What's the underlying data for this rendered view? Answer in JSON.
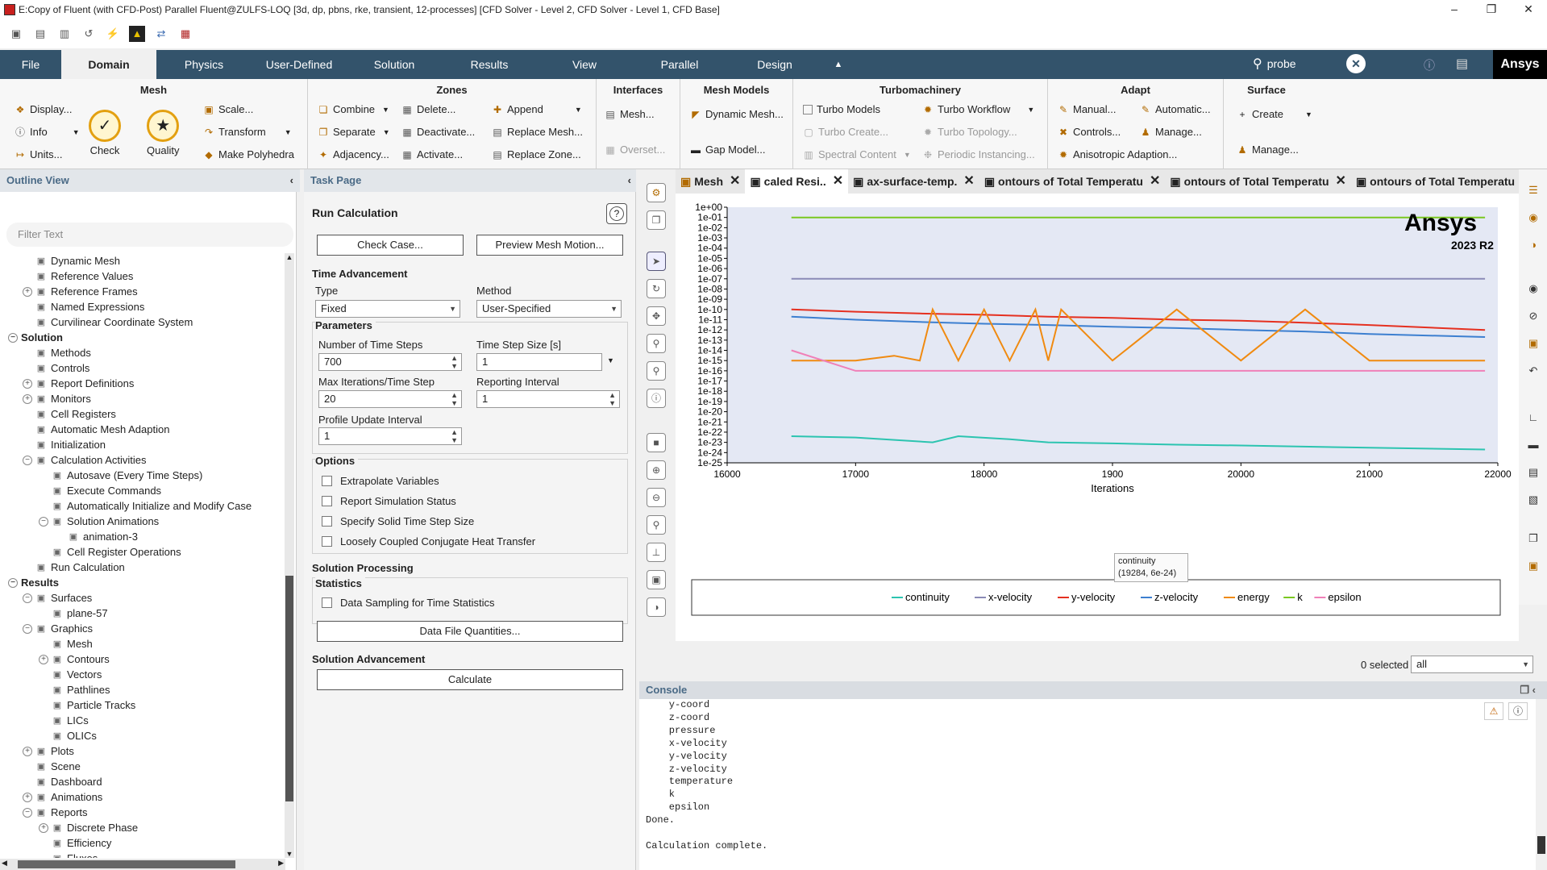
{
  "window": {
    "title": "E:Copy of Fluent (with CFD-Post) Parallel Fluent@ZULFS-LOQ  [3d, dp, pbns, rke, transient, 12-processes] [CFD Solver - Level 2, CFD Solver - Level 1, CFD Base]"
  },
  "tabs": [
    "File",
    "Domain",
    "Physics",
    "User-Defined",
    "Solution",
    "Results",
    "View",
    "Parallel",
    "Design"
  ],
  "search": {
    "value": "probe"
  },
  "brand": "Ansys",
  "ribbon": {
    "mesh": {
      "title": "Mesh",
      "display": "Display...",
      "info": "Info",
      "units": "Units...",
      "check": "Check",
      "quality": "Quality",
      "scale": "Scale...",
      "transform": "Transform",
      "polyhedra": "Make Polyhedra"
    },
    "zones": {
      "title": "Zones",
      "combine": "Combine",
      "separate": "Separate",
      "adjacency": "Adjacency...",
      "delete": "Delete...",
      "deactivate": "Deactivate...",
      "activate": "Activate...",
      "append": "Append",
      "replace_mesh": "Replace Mesh...",
      "replace_zone": "Replace Zone..."
    },
    "interfaces": {
      "title": "Interfaces",
      "mesh": "Mesh...",
      "overset": "Overset..."
    },
    "mesh_models": {
      "title": "Mesh Models",
      "dynamic": "Dynamic Mesh...",
      "gap": "Gap Model..."
    },
    "turbo": {
      "title": "Turbomachinery",
      "models": "Turbo Models",
      "create": "Turbo Create...",
      "spectral": "Spectral Content",
      "workflow": "Turbo Workflow",
      "topology": "Turbo Topology...",
      "periodic": "Periodic Instancing..."
    },
    "adapt": {
      "title": "Adapt",
      "manual": "Manual...",
      "controls": "Controls...",
      "aniso": "Anisotropic Adaption...",
      "automatic": "Automatic...",
      "manage": "Manage..."
    },
    "surface": {
      "title": "Surface",
      "create": "Create",
      "manage": "Manage..."
    }
  },
  "outline": {
    "title": "Outline View",
    "filter_placeholder": "Filter Text",
    "items": [
      {
        "label": "Dynamic Mesh",
        "level": 2,
        "tog": ""
      },
      {
        "label": "Reference Values",
        "level": 2,
        "tog": ""
      },
      {
        "label": "Reference Frames",
        "level": 2,
        "tog": "+"
      },
      {
        "label": "Named Expressions",
        "level": 2,
        "tog": ""
      },
      {
        "label": "Curvilinear Coordinate System",
        "level": 2,
        "tog": ""
      },
      {
        "label": "Solution",
        "level": 0,
        "tog": "-",
        "bold": true
      },
      {
        "label": "Methods",
        "level": 2,
        "tog": ""
      },
      {
        "label": "Controls",
        "level": 2,
        "tog": ""
      },
      {
        "label": "Report Definitions",
        "level": 2,
        "tog": "+"
      },
      {
        "label": "Monitors",
        "level": 2,
        "tog": "+"
      },
      {
        "label": "Cell Registers",
        "level": 2,
        "tog": ""
      },
      {
        "label": "Automatic Mesh Adaption",
        "level": 2,
        "tog": ""
      },
      {
        "label": "Initialization",
        "level": 2,
        "tog": ""
      },
      {
        "label": "Calculation Activities",
        "level": 2,
        "tog": "-"
      },
      {
        "label": "Autosave (Every Time Steps)",
        "level": 3,
        "tog": ""
      },
      {
        "label": "Execute Commands",
        "level": 3,
        "tog": ""
      },
      {
        "label": "Automatically Initialize and Modify Case",
        "level": 3,
        "tog": ""
      },
      {
        "label": "Solution Animations",
        "level": 3,
        "tog": "-"
      },
      {
        "label": "animation-3",
        "level": 4,
        "tog": ""
      },
      {
        "label": "Cell Register Operations",
        "level": 3,
        "tog": ""
      },
      {
        "label": "Run Calculation",
        "level": 2,
        "tog": ""
      },
      {
        "label": "Results",
        "level": 0,
        "tog": "-",
        "bold": true
      },
      {
        "label": "Surfaces",
        "level": 2,
        "tog": "-"
      },
      {
        "label": "plane-57",
        "level": 3,
        "tog": ""
      },
      {
        "label": "Graphics",
        "level": 2,
        "tog": "-"
      },
      {
        "label": "Mesh",
        "level": 3,
        "tog": ""
      },
      {
        "label": "Contours",
        "level": 3,
        "tog": "+"
      },
      {
        "label": "Vectors",
        "level": 3,
        "tog": ""
      },
      {
        "label": "Pathlines",
        "level": 3,
        "tog": ""
      },
      {
        "label": "Particle Tracks",
        "level": 3,
        "tog": ""
      },
      {
        "label": "LICs",
        "level": 3,
        "tog": ""
      },
      {
        "label": "OLICs",
        "level": 3,
        "tog": ""
      },
      {
        "label": "Plots",
        "level": 2,
        "tog": "+"
      },
      {
        "label": "Scene",
        "level": 2,
        "tog": ""
      },
      {
        "label": "Dashboard",
        "level": 2,
        "tog": ""
      },
      {
        "label": "Animations",
        "level": 2,
        "tog": "+"
      },
      {
        "label": "Reports",
        "level": 2,
        "tog": "-"
      },
      {
        "label": "Discrete Phase",
        "level": 3,
        "tog": "+"
      },
      {
        "label": "Efficiency",
        "level": 3,
        "tog": ""
      },
      {
        "label": "Fluxes",
        "level": 3,
        "tog": ""
      }
    ]
  },
  "task": {
    "title": "Task Page",
    "heading": "Run Calculation",
    "check_case": "Check Case...",
    "preview_motion": "Preview Mesh Motion...",
    "time_adv": "Time Advancement",
    "type_label": "Type",
    "type_value": "Fixed",
    "method_label": "Method",
    "method_value": "User-Specified",
    "parameters": "Parameters",
    "nsteps_label": "Number of Time Steps",
    "nsteps_value": "700",
    "dt_label": "Time Step Size [s]",
    "dt_value": "1",
    "maxit_label": "Max Iterations/Time Step",
    "maxit_value": "20",
    "report_label": "Reporting Interval",
    "report_value": "1",
    "profile_label": "Profile Update Interval",
    "profile_value": "1",
    "options": "Options",
    "opt1": "Extrapolate Variables",
    "opt2": "Report Simulation Status",
    "opt3": "Specify Solid Time Step Size",
    "opt4": "Loosely Coupled Conjugate Heat Transfer",
    "sol_proc": "Solution Processing",
    "statistics": "Statistics",
    "sampling": "Data Sampling for Time Statistics",
    "data_file": "Data File Quantities...",
    "sol_adv": "Solution Advancement",
    "calculate": "Calculate"
  },
  "graph_tabs": [
    "Mesh",
    "caled Resi..",
    "ax-surface-temp.",
    "ontours of Total Temperatu",
    "ontours of Total Temperatu",
    "ontours of Total Temperatu"
  ],
  "plot": {
    "logo": "Ansys",
    "version": "2023 R2",
    "tooltip_name": "continuity",
    "tooltip_value": "(19284, 6e-24)",
    "selected_label": "0 selected",
    "selected_value": "all"
  },
  "chart_data": {
    "type": "line",
    "xlabel": "Iterations",
    "ylabel": "",
    "yscale": "log",
    "xlim": [
      16000,
      22000
    ],
    "ylim": [
      1e-25,
      1
    ],
    "x_ticks": [
      "16000",
      "17000",
      "18000",
      "1900",
      "20000",
      "21000",
      "22000"
    ],
    "y_ticks": [
      "1e+00",
      "1e-01",
      "1e-02",
      "1e-03",
      "1e-04",
      "1e-05",
      "1e-06",
      "1e-07",
      "1e-08",
      "1e-09",
      "1e-10",
      "1e-11",
      "1e-12",
      "1e-13",
      "1e-14",
      "1e-15",
      "1e-16",
      "1e-17",
      "1e-18",
      "1e-19",
      "1e-20",
      "1e-21",
      "1e-22",
      "1e-23",
      "1e-24",
      "1e-25"
    ],
    "legend_position": "bottom",
    "series": [
      {
        "name": "continuity",
        "color": "#2cc4b0",
        "x": [
          16500,
          17000,
          17600,
          17800,
          18200,
          18500,
          19000,
          19500,
          20000,
          21000,
          21900
        ],
        "y": [
          4e-23,
          3e-23,
          1e-23,
          4e-23,
          2e-23,
          1e-23,
          8e-24,
          6e-24,
          5e-24,
          3e-24,
          2e-24
        ]
      },
      {
        "name": "x-velocity",
        "color": "#8a8ab6",
        "x": [
          16500,
          21900
        ],
        "y": [
          1e-07,
          1e-07
        ]
      },
      {
        "name": "y-velocity",
        "color": "#e53020",
        "x": [
          16500,
          17000,
          17500,
          18000,
          18500,
          19000,
          19500,
          20000,
          20500,
          21000,
          21900
        ],
        "y": [
          1e-10,
          6e-11,
          4e-11,
          3e-11,
          2e-11,
          1.5e-11,
          1e-11,
          8e-12,
          5e-12,
          3e-12,
          1e-12
        ]
      },
      {
        "name": "z-velocity",
        "color": "#3c7fd0",
        "x": [
          16500,
          17000,
          17500,
          18000,
          18500,
          19000,
          19500,
          20000,
          20500,
          21000,
          21900
        ],
        "y": [
          2e-11,
          1e-11,
          6e-12,
          4e-12,
          3e-12,
          2e-12,
          1.5e-12,
          1e-12,
          7e-13,
          4e-13,
          2e-13
        ]
      },
      {
        "name": "energy",
        "color": "#f08a10",
        "x": [
          16500,
          17000,
          17300,
          17500,
          17600,
          17800,
          18000,
          18200,
          18400,
          18500,
          18600,
          19000,
          19500,
          20000,
          20500,
          21000,
          21900
        ],
        "y": [
          1e-15,
          1e-15,
          3e-15,
          1e-15,
          1e-10,
          1e-15,
          1e-10,
          1e-15,
          1e-10,
          1e-15,
          1e-10,
          1e-15,
          1e-10,
          1e-15,
          1e-10,
          1e-15,
          1e-15
        ]
      },
      {
        "name": "k",
        "color": "#7ac820",
        "x": [
          16500,
          21900
        ],
        "y": [
          0.1,
          0.1
        ]
      },
      {
        "name": "epsilon",
        "color": "#f080b8",
        "x": [
          16500,
          17000,
          21900
        ],
        "y": [
          1e-14,
          1e-16,
          1e-16
        ]
      }
    ]
  },
  "console": {
    "title": "Console",
    "lines": [
      "    y-coord",
      "    z-coord",
      "    pressure",
      "    x-velocity",
      "    y-velocity",
      "    z-velocity",
      "    temperature",
      "    k",
      "    epsilon",
      "Done.",
      "",
      "Calculation complete."
    ]
  }
}
